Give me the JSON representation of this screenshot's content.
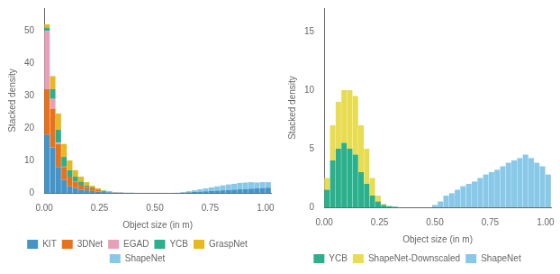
{
  "chart_data": [
    {
      "type": "bar",
      "stacked": true,
      "grid": false,
      "legend": "bottom",
      "xlabel": "Object size (in m)",
      "ylabel": "Stacked density",
      "bins": [
        0,
        0.025625,
        0.05125,
        0.076875,
        0.1025,
        0.128125,
        0.15375,
        0.179375,
        0.205,
        0.230625,
        0.25625,
        0.281875,
        0.3075,
        0.333125,
        0.35875,
        0.384375,
        0.41,
        0.435625,
        0.46125,
        0.486875,
        0.5125,
        0.538125,
        0.56375,
        0.589375,
        0.615,
        0.640625,
        0.66625,
        0.691875,
        0.7175,
        0.743125,
        0.76875,
        0.794375,
        0.82,
        0.845625,
        0.87125,
        0.896875,
        0.9225,
        0.948125,
        0.97375,
        0.999375,
        1.025
      ],
      "xlim": [
        0.0,
        1.025
      ],
      "xticks": [
        {
          "value": 0.0,
          "label": "0.00"
        },
        {
          "value": 0.25,
          "label": "0.25"
        },
        {
          "value": 0.5,
          "label": "0.50"
        },
        {
          "value": 0.75,
          "label": "0.75"
        },
        {
          "value": 1.0,
          "label": "1.00"
        }
      ],
      "ylim": [
        0,
        57
      ],
      "yticks": [
        0,
        10,
        20,
        30,
        40,
        50
      ],
      "series": [
        {
          "name": "KIT",
          "color": "#4494c8",
          "values": [
            18,
            14,
            8,
            4,
            2,
            1.5,
            1,
            0.8,
            0.6,
            0.4,
            0.3,
            0.2,
            0.1,
            0.1,
            0.05,
            0.05,
            0.0,
            0.0,
            0.0,
            0.0,
            0.0,
            0.0,
            0.0,
            0.0,
            0.1,
            0.2,
            0.3,
            0.4,
            0.5,
            0.6,
            0.7,
            0.8,
            0.9,
            1.0,
            1.1,
            1.2,
            1.3,
            1.4,
            1.5,
            1.6
          ]
        },
        {
          "name": "3DNet",
          "color": "#e8721c",
          "values": [
            14,
            12,
            7,
            4,
            3,
            2,
            1.5,
            1,
            0.8,
            0.5,
            0.3,
            0.2,
            0.1,
            0.05,
            0.0,
            0.0,
            0.0,
            0.0,
            0.0,
            0.0,
            0.0,
            0.0,
            0.0,
            0.0,
            0.0,
            0.0,
            0.0,
            0.0,
            0.0,
            0.0,
            0.0,
            0.0,
            0.0,
            0.0,
            0.0,
            0.0,
            0.0,
            0.0,
            0.0,
            0.0
          ]
        },
        {
          "name": "EGAD",
          "color": "#e8a0b8",
          "values": [
            18,
            3,
            0.5,
            0.1,
            0.0,
            0.0,
            0.0,
            0.0,
            0.0,
            0.0,
            0.0,
            0.0,
            0.0,
            0.0,
            0.0,
            0.0,
            0.0,
            0.0,
            0.0,
            0.0,
            0.0,
            0.0,
            0.0,
            0.0,
            0.0,
            0.0,
            0.0,
            0.0,
            0.0,
            0.0,
            0.0,
            0.0,
            0.0,
            0.0,
            0.0,
            0.0,
            0.0,
            0.0,
            0.0,
            0.0
          ]
        },
        {
          "name": "YCB",
          "color": "#2ab08c",
          "values": [
            1,
            3,
            4,
            3,
            2,
            1.5,
            1,
            0.5,
            0.3,
            0.2,
            0.1,
            0.05,
            0.0,
            0.0,
            0.0,
            0.0,
            0.0,
            0.0,
            0.0,
            0.0,
            0.0,
            0.0,
            0.0,
            0.0,
            0.0,
            0.0,
            0.0,
            0.0,
            0.0,
            0.0,
            0.0,
            0.0,
            0.0,
            0.0,
            0.0,
            0.0,
            0.0,
            0.0,
            0.0,
            0.0
          ]
        },
        {
          "name": "GraspNet",
          "color": "#e8b820",
          "values": [
            1,
            4,
            5,
            4,
            3,
            2,
            1.5,
            1,
            0.5,
            0.3,
            0.1,
            0.05,
            0.0,
            0.0,
            0.0,
            0.0,
            0.0,
            0.0,
            0.0,
            0.0,
            0.0,
            0.0,
            0.0,
            0.0,
            0.0,
            0.0,
            0.0,
            0.0,
            0.0,
            0.0,
            0.0,
            0.0,
            0.0,
            0.0,
            0.0,
            0.0,
            0.0,
            0.0,
            0.0,
            0.0
          ]
        },
        {
          "name": "ShapeNet",
          "color": "#88c8e8",
          "values": [
            0.0,
            0.0,
            0.0,
            0.0,
            0.0,
            0.0,
            0.0,
            0.0,
            0.0,
            0.0,
            0.0,
            0.0,
            0.0,
            0.0,
            0.0,
            0.0,
            0.0,
            0.0,
            0.0,
            0.0,
            0.0,
            0.0,
            0.0,
            0.05,
            0.15,
            0.3,
            0.5,
            0.7,
            0.9,
            1.1,
            1.3,
            1.5,
            1.7,
            1.8,
            2.0,
            2.0,
            2.0,
            1.8,
            1.8,
            1.7
          ]
        }
      ]
    },
    {
      "type": "bar",
      "stacked": true,
      "grid": false,
      "legend": "bottom",
      "xlabel": "Object size (in m)",
      "ylabel": "Stacked density",
      "bins": [
        0,
        0.025625,
        0.05125,
        0.076875,
        0.1025,
        0.128125,
        0.15375,
        0.179375,
        0.205,
        0.230625,
        0.25625,
        0.281875,
        0.3075,
        0.333125,
        0.35875,
        0.384375,
        0.41,
        0.435625,
        0.46125,
        0.486875,
        0.5125,
        0.538125,
        0.56375,
        0.589375,
        0.615,
        0.640625,
        0.66625,
        0.691875,
        0.7175,
        0.743125,
        0.76875,
        0.794375,
        0.82,
        0.845625,
        0.87125,
        0.896875,
        0.9225,
        0.948125,
        0.97375,
        0.999375,
        1.025
      ],
      "xlim": [
        0.0,
        1.025
      ],
      "xticks": [
        {
          "value": 0.0,
          "label": "0.00"
        },
        {
          "value": 0.25,
          "label": "0.25"
        },
        {
          "value": 0.5,
          "label": "0.50"
        },
        {
          "value": 0.75,
          "label": "0.75"
        },
        {
          "value": 1.0,
          "label": "1.00"
        }
      ],
      "ylim": [
        0,
        17
      ],
      "yticks": [
        0,
        5,
        10,
        15
      ],
      "series": [
        {
          "name": "YCB",
          "color": "#2ab08c",
          "values": [
            1.5,
            4,
            5,
            5.5,
            5,
            4.5,
            3,
            2,
            1,
            0.5,
            0.2,
            0.1,
            0.05,
            0.0,
            0.0,
            0.0,
            0.0,
            0.0,
            0.0,
            0.0,
            0.0,
            0.0,
            0.0,
            0.0,
            0.0,
            0.0,
            0.0,
            0.0,
            0.0,
            0.0,
            0.0,
            0.0,
            0.0,
            0.0,
            0.0,
            0.0,
            0.0,
            0.0,
            0.0,
            0.0
          ]
        },
        {
          "name": "ShapeNet-Downscaled",
          "color": "#e8dc50",
          "values": [
            1,
            3,
            4,
            4.5,
            5,
            5,
            4,
            3,
            1.5,
            0.5,
            0.1,
            0.0,
            0.0,
            0.0,
            0.0,
            0.0,
            0.0,
            0.0,
            0.0,
            0.0,
            0.0,
            0.0,
            0.0,
            0.0,
            0.0,
            0.0,
            0.0,
            0.0,
            0.0,
            0.0,
            0.0,
            0.0,
            0.0,
            0.0,
            0.0,
            0.0,
            0.0,
            0.0,
            0.0,
            0.0
          ]
        },
        {
          "name": "ShapeNet",
          "color": "#88c8e8",
          "values": [
            0.0,
            0.0,
            0.0,
            0.0,
            0.0,
            0.0,
            0.0,
            0.0,
            0.0,
            0.0,
            0.0,
            0.0,
            0.0,
            0.0,
            0.0,
            0.0,
            0.0,
            0.0,
            0.0,
            0.2,
            0.5,
            1.0,
            1.2,
            1.5,
            1.8,
            2.0,
            2.2,
            2.5,
            2.8,
            3.0,
            3.2,
            3.5,
            3.8,
            4.0,
            4.2,
            4.5,
            4.2,
            3.8,
            3.5,
            2.8
          ]
        }
      ]
    }
  ]
}
